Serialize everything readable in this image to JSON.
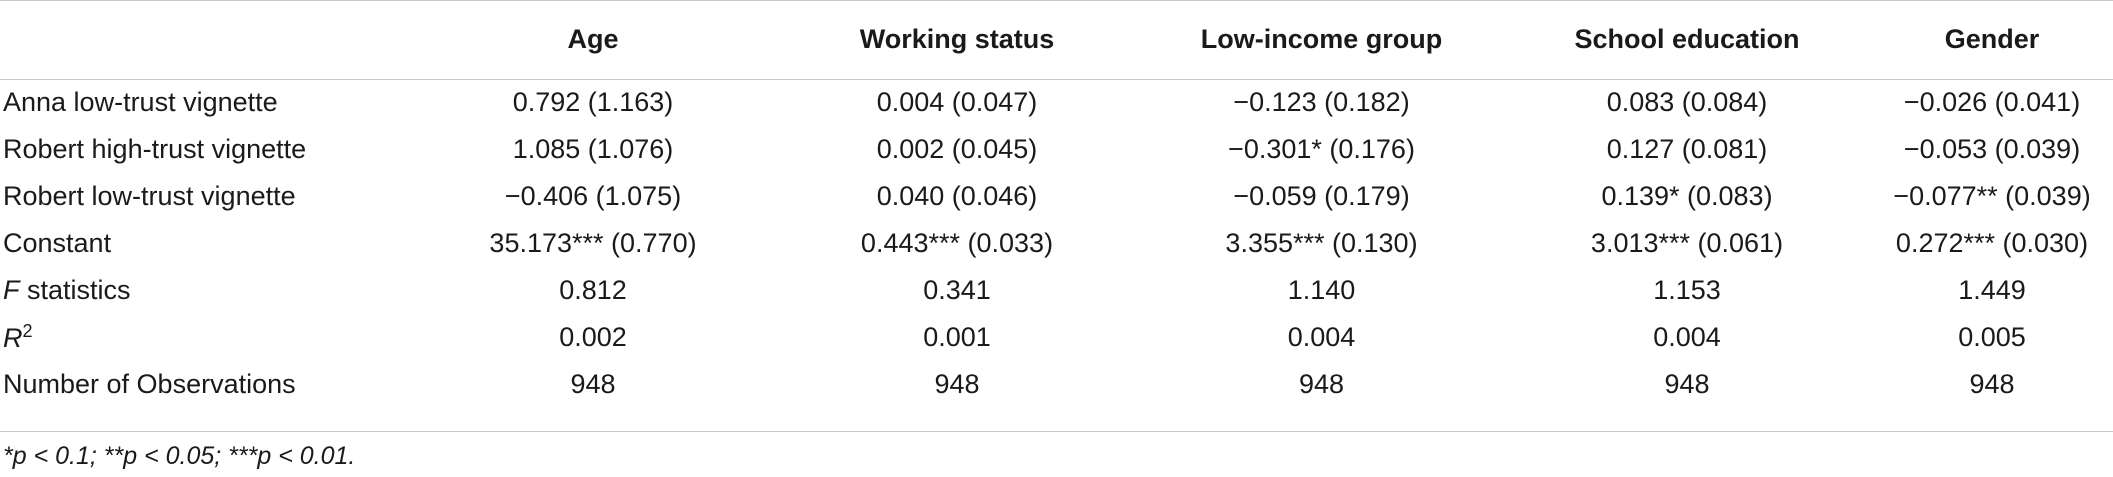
{
  "columns": [
    "",
    "Age",
    "Working status",
    "Low-income group",
    "School education",
    "Gender"
  ],
  "rows": [
    {
      "label": "Anna low-trust vignette",
      "cells": [
        "0.792 (1.163)",
        "0.004 (0.047)",
        "−0.123 (0.182)",
        "0.083 (0.084)",
        "−0.026 (0.041)"
      ]
    },
    {
      "label": "Robert high-trust vignette",
      "cells": [
        "1.085 (1.076)",
        "0.002 (0.045)",
        "−0.301* (0.176)",
        "0.127 (0.081)",
        "−0.053 (0.039)"
      ]
    },
    {
      "label": "Robert low-trust vignette",
      "cells": [
        "−0.406 (1.075)",
        "0.040 (0.046)",
        "−0.059 (0.179)",
        "0.139* (0.083)",
        "−0.077** (0.039)"
      ]
    },
    {
      "label": "Constant",
      "cells": [
        "35.173*** (0.770)",
        "0.443*** (0.033)",
        "3.355*** (0.130)",
        "3.013*** (0.061)",
        "0.272*** (0.030)"
      ]
    },
    {
      "label_italic": "F",
      "label": " statistics",
      "cells": [
        "0.812",
        "0.341",
        "1.140",
        "1.153",
        "1.449"
      ]
    },
    {
      "label_italic": "R",
      "label_sup": "2",
      "cells": [
        "0.002",
        "0.001",
        "0.004",
        "0.004",
        "0.005"
      ]
    },
    {
      "label": "Number of Observations",
      "cells": [
        "948",
        "948",
        "948",
        "948",
        "948"
      ]
    }
  ],
  "footnote": "*p < 0.1; **p < 0.05; ***p < 0.01."
}
